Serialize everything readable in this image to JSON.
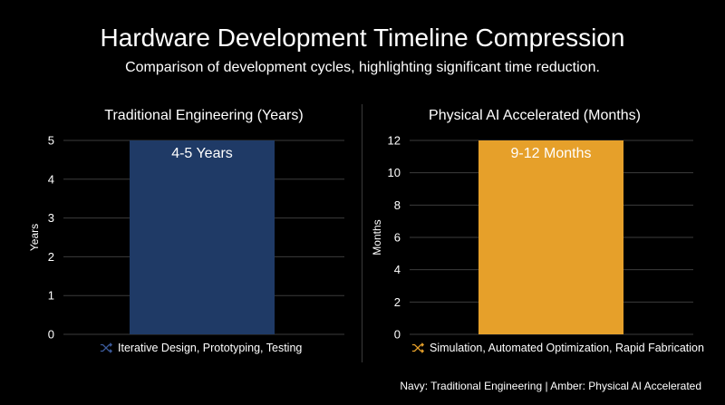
{
  "title": "Hardware Development Timeline Compression",
  "subtitle": "Comparison of development cycles, highlighting significant time reduction.",
  "footnote": "Navy: Traditional Engineering | Amber: Physical AI Accelerated",
  "colors": {
    "navy": "#1f3a66",
    "amber": "#e6a02a",
    "grid": "#3c3c3c",
    "background": "#000000"
  },
  "chart_data": [
    {
      "type": "bar",
      "title": "Traditional Engineering (Years)",
      "ylabel": "Years",
      "xlabel": "",
      "ylim": [
        0,
        5
      ],
      "yticks": [
        "0",
        "1",
        "2",
        "3",
        "4",
        "5"
      ],
      "categories": [
        ""
      ],
      "values": [
        5
      ],
      "data_label": "4-5 Years",
      "bar_color": "#1f3a66",
      "grid": true,
      "caption": "Iterative Design, Prototyping, Testing",
      "caption_icon": "shuffle-icon"
    },
    {
      "type": "bar",
      "title": "Physical AI Accelerated (Months)",
      "ylabel": "Months",
      "xlabel": "",
      "ylim": [
        0,
        12
      ],
      "yticks": [
        "0",
        "2",
        "4",
        "6",
        "8",
        "10",
        "12"
      ],
      "categories": [
        ""
      ],
      "values": [
        12
      ],
      "data_label": "9-12 Months",
      "bar_color": "#e6a02a",
      "grid": true,
      "caption": "Simulation, Automated Optimization, Rapid Fabrication",
      "caption_icon": "shuffle-icon"
    }
  ]
}
